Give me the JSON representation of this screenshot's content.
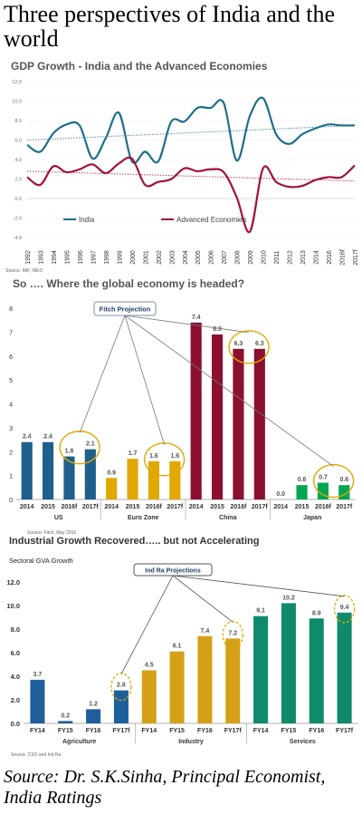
{
  "page_title": "Three perspectives of India and the world",
  "page_source": "Source: Dr. S.K.Sinha, Principal Economist, India Ratings",
  "chart_data": [
    {
      "type": "line",
      "title": "GDP Growth - India and the Advanced Economies",
      "source": "Source: IMF, WEO",
      "x": [
        "1992",
        "1993",
        "1994",
        "1995",
        "1996",
        "1997",
        "1998",
        "1999",
        "2000",
        "2001",
        "2002",
        "2003",
        "2004",
        "2005",
        "2006",
        "2007",
        "2008",
        "2009",
        "2010",
        "2011",
        "2012",
        "2013",
        "2014",
        "2016",
        "2016f",
        "2017f"
      ],
      "ylim": [
        -4,
        12
      ],
      "yticks": [
        "-4.0",
        "-2.0",
        "0.0",
        "2.0",
        "4.0",
        "6.0",
        "8.0",
        "10.0",
        "12.0"
      ],
      "series": [
        {
          "name": "India",
          "color": "#1f6f8b",
          "values": [
            5.5,
            4.8,
            6.7,
            7.6,
            7.5,
            4.1,
            6.2,
            8.8,
            3.8,
            4.8,
            3.8,
            7.9,
            7.9,
            9.3,
            9.3,
            9.8,
            3.9,
            8.5,
            10.3,
            6.6,
            5.6,
            6.6,
            7.2,
            7.6,
            7.5,
            7.5
          ]
        },
        {
          "name": "Advanced Economies",
          "color": "#a3123a",
          "values": [
            2.2,
            1.4,
            3.3,
            2.7,
            3.0,
            3.5,
            2.6,
            3.6,
            4.1,
            1.4,
            1.7,
            2.0,
            3.1,
            2.8,
            3.0,
            2.7,
            0.1,
            -3.4,
            3.1,
            1.7,
            1.2,
            1.3,
            1.9,
            2.2,
            2.2,
            3.4
          ]
        }
      ],
      "trendlines": [
        {
          "series": "India",
          "start": 6.0,
          "end": 7.5
        },
        {
          "series": "Advanced Economies",
          "start": 2.8,
          "end": 1.8
        }
      ]
    },
    {
      "type": "bar",
      "title": "So …. Where the global economy is headed?",
      "annotation": "Fitch Projection",
      "source": "Source: Fitch, May 2016",
      "ylim": [
        0,
        8
      ],
      "yticks": [
        "0",
        "1",
        "2",
        "3",
        "4",
        "5",
        "6",
        "7",
        "8"
      ],
      "groups": [
        {
          "name": "US",
          "color": "#1f5f8b",
          "categories": [
            "2014",
            "2015",
            "2016f",
            "2017f"
          ],
          "values": [
            2.4,
            2.4,
            1.8,
            2.1
          ],
          "labels": [
            "2.4",
            "2.4",
            "1.8",
            "2.1"
          ]
        },
        {
          "name": "Euro Zone",
          "color": "#e0a800",
          "categories": [
            "2014",
            "2015",
            "2016f",
            "2017f"
          ],
          "values": [
            0.9,
            1.7,
            1.6,
            1.6
          ],
          "labels": [
            "0.9",
            "1.7",
            "1.6",
            "1.6"
          ]
        },
        {
          "name": "China",
          "color": "#8b1030",
          "categories": [
            "2014",
            "2015",
            "2016f",
            "2017f"
          ],
          "values": [
            7.4,
            6.9,
            6.3,
            6.3
          ],
          "labels": [
            "7.4",
            "6.9",
            "6.3",
            "6.3"
          ]
        },
        {
          "name": "Japan",
          "color": "#00a651",
          "categories": [
            "2014",
            "2015",
            "2016f",
            "2017f"
          ],
          "values": [
            0.0,
            0.6,
            0.7,
            0.6
          ],
          "labels": [
            "0.0",
            "0.6",
            "0.7",
            "0.6"
          ]
        }
      ]
    },
    {
      "type": "bar",
      "title": "Industrial Growth Recovered….. but not Accelerating",
      "subtitle": "Sectoral GVA Growth",
      "annotation": "Ind Ra Projections",
      "source": "Source: CSO and Ind Ra",
      "ylim": [
        0,
        12
      ],
      "yticks": [
        "0.0",
        "2.0",
        "4.0",
        "6.0",
        "8.0",
        "10.0",
        "12.0"
      ],
      "groups": [
        {
          "name": "Agriculture",
          "color": "#1f5f9b",
          "categories": [
            "FY14",
            "FY15",
            "FY16",
            "FY17f"
          ],
          "values": [
            3.7,
            0.2,
            1.2,
            2.8
          ],
          "labels": [
            "3.7",
            "0.2",
            "1.2",
            "2.8"
          ]
        },
        {
          "name": "Industry",
          "color": "#d4a017",
          "categories": [
            "FY14",
            "FY15",
            "FY16",
            "FY17f"
          ],
          "values": [
            4.5,
            6.1,
            7.4,
            7.2
          ],
          "labels": [
            "4.5",
            "6.1",
            "7.4",
            "7.2"
          ]
        },
        {
          "name": "Services",
          "color": "#0f8a6a",
          "categories": [
            "FY14",
            "FY15",
            "FY16",
            "FY17f"
          ],
          "values": [
            9.1,
            10.2,
            8.9,
            9.4
          ],
          "labels": [
            "9.1",
            "10.2",
            "8.9",
            "9.4"
          ]
        }
      ]
    }
  ]
}
